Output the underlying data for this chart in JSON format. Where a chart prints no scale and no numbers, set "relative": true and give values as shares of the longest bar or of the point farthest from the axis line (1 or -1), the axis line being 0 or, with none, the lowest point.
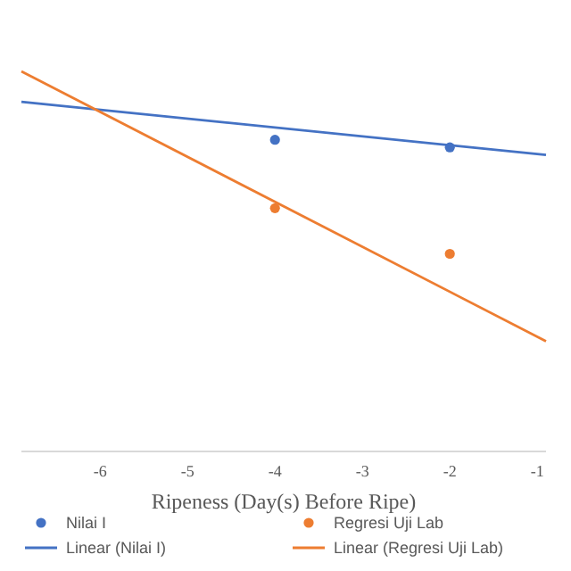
{
  "chart_data": {
    "type": "scatter",
    "xlabel": "Ripeness (Day(s) Before Ripe)",
    "relative": true,
    "xlim": [
      -6.9,
      -0.9
    ],
    "xticks": [
      -6,
      -5,
      -4,
      -3,
      -2,
      -1
    ],
    "legend": "bottom",
    "tick_labels": "x",
    "series": [
      {
        "name": "Nilai I",
        "color": "#4472c4",
        "marker": "circle",
        "x": [
          -4,
          -2
        ],
        "values": [
          0.82,
          0.8
        ]
      },
      {
        "name": "Regresi Uji Lab",
        "color": "#ed7d31",
        "marker": "circle",
        "x": [
          -4,
          -2
        ],
        "values": [
          0.64,
          0.52
        ]
      },
      {
        "name": "Linear (Nilai I)",
        "type": "line",
        "color": "#4472c4",
        "line_style": "solid",
        "x": [
          -6.9,
          -0.9
        ],
        "values": [
          0.92,
          0.78
        ]
      },
      {
        "name": "Linear (Regresi Uji Lab)",
        "type": "line",
        "color": "#ed7d31",
        "line_style": "solid",
        "x": [
          -6.9,
          -0.9
        ],
        "values": [
          1.0,
          0.29
        ]
      }
    ]
  }
}
